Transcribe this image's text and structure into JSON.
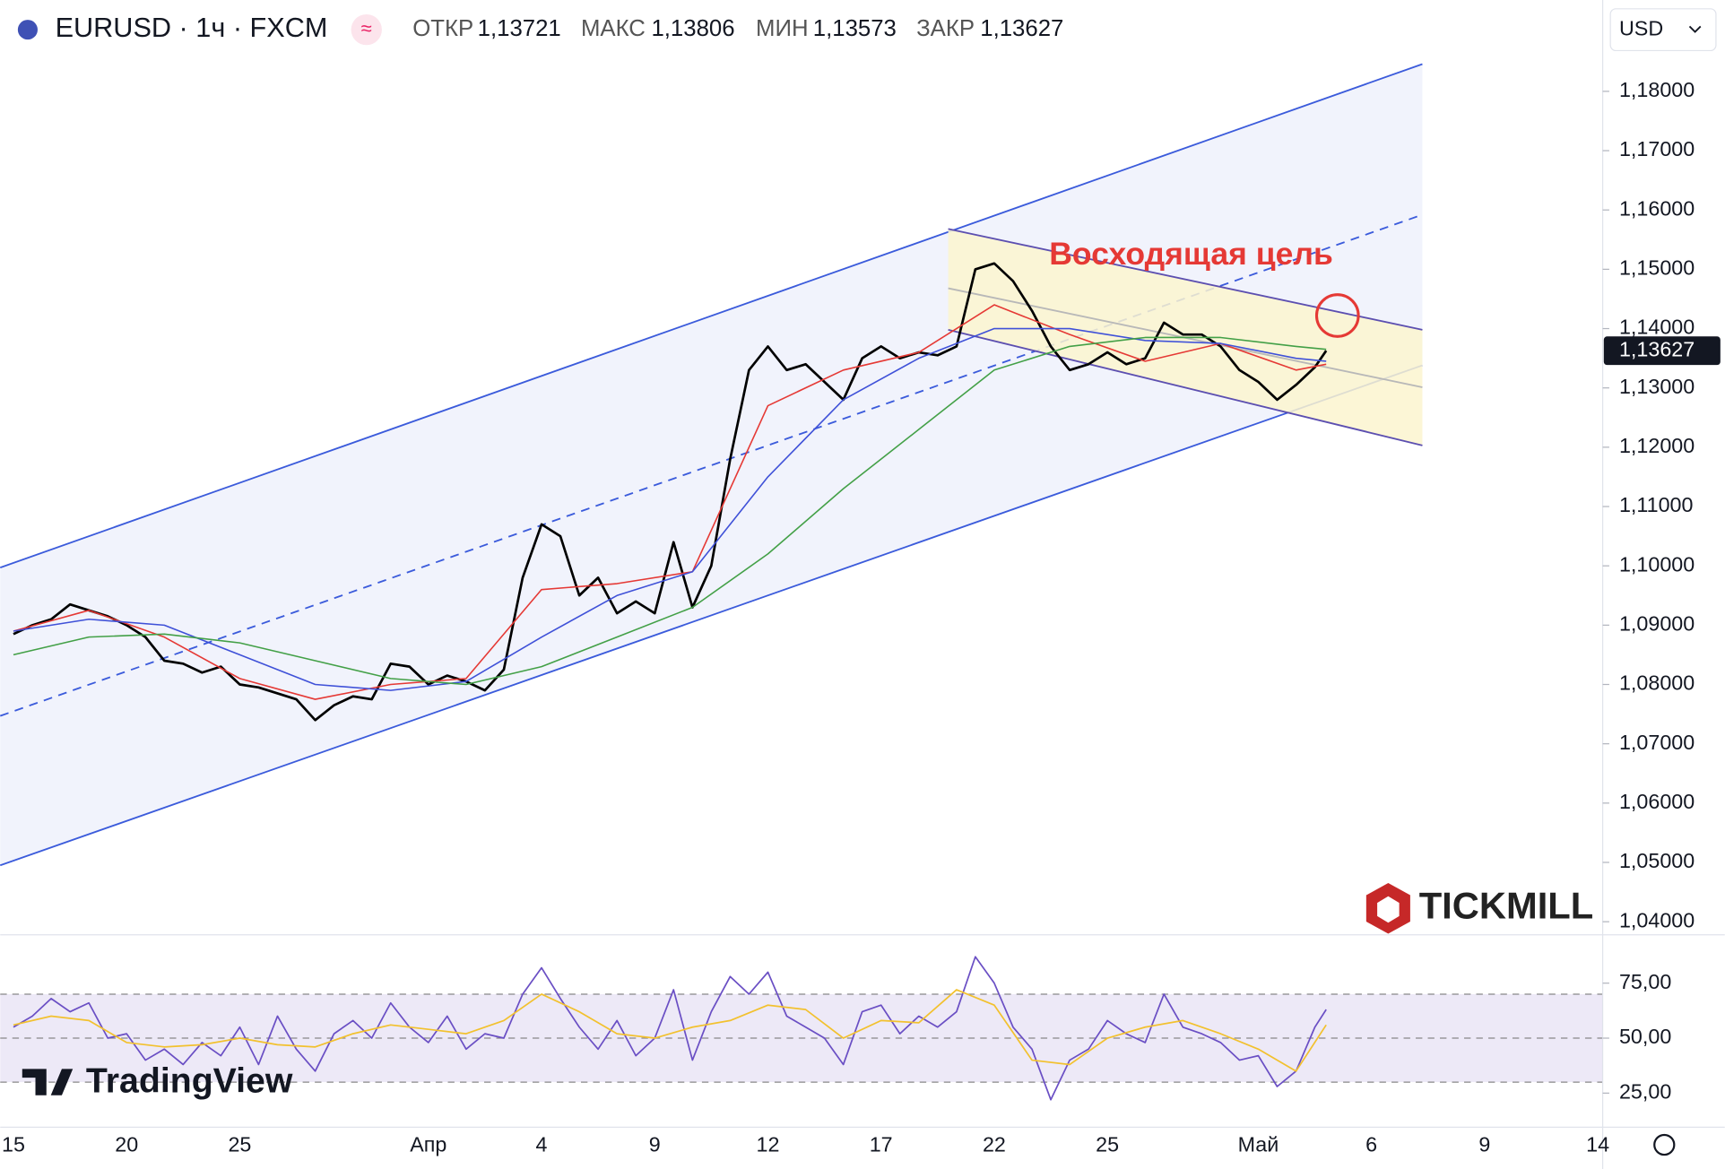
{
  "header": {
    "symbol": "EURUSD · 1ч · FXCM",
    "open_label": "ОТКР",
    "open": "1,13721",
    "high_label": "МАКС",
    "high": "1,13806",
    "low_label": "МИН",
    "low": "1,13573",
    "close_label": "ЗАКР",
    "close": "1,13627",
    "currency": "USD"
  },
  "logos": {
    "broker": "TICKMILL",
    "platform": "TradingView"
  },
  "chart_data": [
    {
      "type": "line",
      "annotation": "Восходящая цель",
      "target": {
        "x": 35.1,
        "value": 1.1422
      },
      "xlim": [
        -0.35,
        42.13
      ],
      "xticks": [
        {
          "value": 0,
          "label": "15"
        },
        {
          "value": 3,
          "label": "20"
        },
        {
          "value": 6,
          "label": "25"
        },
        {
          "value": 11,
          "label": "Апр"
        },
        {
          "value": 14,
          "label": "4"
        },
        {
          "value": 17,
          "label": "9"
        },
        {
          "value": 20,
          "label": "12"
        },
        {
          "value": 23,
          "label": "17"
        },
        {
          "value": 26,
          "label": "22"
        },
        {
          "value": 29,
          "label": "25"
        },
        {
          "value": 33,
          "label": "Май"
        },
        {
          "value": 36,
          "label": "6"
        },
        {
          "value": 39,
          "label": "9"
        },
        {
          "value": 42,
          "label": "14"
        }
      ],
      "ylim": [
        1.0378,
        1.1954
      ],
      "yticks": [
        {
          "value": 1.04,
          "label": "1,04000"
        },
        {
          "value": 1.05,
          "label": "1,05000"
        },
        {
          "value": 1.06,
          "label": "1,06000"
        },
        {
          "value": 1.07,
          "label": "1,07000"
        },
        {
          "value": 1.08,
          "label": "1,08000"
        },
        {
          "value": 1.09,
          "label": "1,09000"
        },
        {
          "value": 1.1,
          "label": "1,10000"
        },
        {
          "value": 1.11,
          "label": "1,11000"
        },
        {
          "value": 1.12,
          "label": "1,12000"
        },
        {
          "value": 1.13,
          "label": "1,13000"
        },
        {
          "value": 1.14,
          "label": "1,14000"
        },
        {
          "value": 1.15,
          "label": "1,15000"
        },
        {
          "value": 1.16,
          "label": "1,16000"
        },
        {
          "value": 1.17,
          "label": "1,17000"
        },
        {
          "value": 1.18,
          "label": "1,18000"
        }
      ],
      "grid": false,
      "series": [
        {
          "color": "#000000",
          "width": 2.2,
          "x": [
            0,
            0.5,
            1,
            1.5,
            2,
            2.5,
            3,
            3.5,
            4,
            4.5,
            5,
            5.5,
            6,
            6.5,
            7,
            7.5,
            8,
            8.5,
            9,
            9.5,
            10,
            10.5,
            11,
            11.5,
            12,
            12.5,
            13,
            13.5,
            14,
            14.5,
            15,
            15.5,
            16,
            16.5,
            17,
            17.5,
            18,
            18.5,
            19,
            19.5,
            20,
            20.5,
            21,
            21.5,
            22,
            22.5,
            23,
            23.5,
            24,
            24.5,
            25,
            25.5,
            26,
            26.5,
            27,
            27.5,
            28,
            28.5,
            29,
            29.5,
            30,
            30.5,
            31,
            31.5,
            32,
            32.5,
            33,
            33.5,
            34,
            34.5,
            34.8
          ],
          "values": [
            1.0885,
            1.09,
            1.091,
            1.0935,
            1.0925,
            1.0915,
            1.09,
            1.088,
            1.084,
            1.0835,
            1.082,
            1.083,
            1.08,
            1.0795,
            1.0785,
            1.0775,
            1.074,
            1.0765,
            1.078,
            1.0775,
            1.0835,
            1.083,
            1.08,
            1.0815,
            1.0805,
            1.079,
            1.0825,
            1.098,
            1.107,
            1.105,
            1.095,
            1.098,
            1.092,
            1.094,
            1.092,
            1.104,
            1.093,
            1.1,
            1.118,
            1.133,
            1.137,
            1.133,
            1.134,
            1.131,
            1.128,
            1.135,
            1.137,
            1.135,
            1.136,
            1.1355,
            1.137,
            1.15,
            1.151,
            1.148,
            1.143,
            1.137,
            1.133,
            1.134,
            1.136,
            1.134,
            1.135,
            1.141,
            1.139,
            1.139,
            1.137,
            1.133,
            1.131,
            1.128,
            1.1305,
            1.1335,
            1.13627
          ]
        },
        {
          "color": "#e53935",
          "width": 1.3,
          "x": [
            0,
            2,
            4,
            6,
            8,
            10,
            12,
            14,
            16,
            18,
            20,
            22,
            24,
            26,
            28,
            30,
            32,
            34,
            34.8
          ],
          "values": [
            1.089,
            1.0925,
            1.088,
            1.081,
            1.0775,
            1.08,
            1.081,
            1.096,
            1.097,
            1.099,
            1.127,
            1.133,
            1.136,
            1.144,
            1.139,
            1.1345,
            1.1375,
            1.133,
            1.134
          ]
        },
        {
          "color": "#3f51d8",
          "width": 1.3,
          "x": [
            0,
            2,
            4,
            6,
            8,
            10,
            12,
            14,
            16,
            18,
            20,
            22,
            24,
            26,
            28,
            30,
            32,
            34,
            34.8
          ],
          "values": [
            1.089,
            1.091,
            1.09,
            1.085,
            1.08,
            1.079,
            1.0805,
            1.088,
            1.095,
            1.099,
            1.115,
            1.128,
            1.135,
            1.14,
            1.14,
            1.138,
            1.1375,
            1.135,
            1.1345
          ]
        },
        {
          "color": "#43a047",
          "width": 1.3,
          "x": [
            0,
            2,
            4,
            6,
            8,
            10,
            12,
            14,
            16,
            18,
            20,
            22,
            24,
            26,
            28,
            30,
            32,
            34,
            34.8
          ],
          "values": [
            1.085,
            1.088,
            1.0885,
            1.087,
            1.084,
            1.081,
            1.08,
            1.083,
            1.088,
            1.093,
            1.102,
            1.113,
            1.123,
            1.133,
            1.137,
            1.1385,
            1.1385,
            1.137,
            1.1365
          ]
        }
      ],
      "channels": [
        {
          "color": "#3b5bdb",
          "fill": "#eef1fb",
          "upper": {
            "x": [
              -0.35,
              37.35
            ],
            "values": [
              1.0997,
              1.1846
            ]
          },
          "lower": {
            "x": [
              -0.35,
              37.35
            ],
            "values": [
              1.0495,
              1.1338
            ]
          },
          "middle": {
            "x": [
              -0.35,
              37.35
            ],
            "values": [
              1.0747,
              1.1592
            ]
          }
        },
        {
          "color": "#5c4fb0",
          "fill": "#fbf5cf",
          "upper": {
            "x": [
              24.78,
              37.35
            ],
            "values": [
              1.1568,
              1.1398
            ]
          },
          "lower": {
            "x": [
              24.78,
              37.35
            ],
            "values": [
              1.1398,
              1.1203
            ]
          },
          "middle": {
            "x": [
              24.78,
              37.35
            ],
            "values": [
              1.1468,
              1.1301
            ]
          }
        }
      ]
    },
    {
      "type": "line",
      "xlim": [
        -0.35,
        42.13
      ],
      "ylim": [
        9.5,
        97
      ],
      "yticks": [
        {
          "value": 25,
          "label": "25,00"
        },
        {
          "value": 50,
          "label": "50,00"
        },
        {
          "value": 75,
          "label": "75,00"
        }
      ],
      "bands": [
        30,
        70
      ],
      "midline": 50,
      "series": [
        {
          "color": "#6a4fc4",
          "width": 1.4,
          "x": [
            0,
            0.5,
            1,
            1.5,
            2,
            2.5,
            3,
            3.5,
            4,
            4.5,
            5,
            5.5,
            6,
            6.5,
            7,
            7.5,
            8,
            8.5,
            9,
            9.5,
            10,
            10.5,
            11,
            11.5,
            12,
            12.5,
            13,
            13.5,
            14,
            14.5,
            15,
            15.5,
            16,
            16.5,
            17,
            17.5,
            18,
            18.5,
            19,
            19.5,
            20,
            20.5,
            21,
            21.5,
            22,
            22.5,
            23,
            23.5,
            24,
            24.5,
            25,
            25.5,
            26,
            26.5,
            27,
            27.5,
            28,
            28.5,
            29,
            29.5,
            30,
            30.5,
            31,
            31.5,
            32,
            32.5,
            33,
            33.5,
            34,
            34.5,
            34.8
          ],
          "values": [
            55,
            60,
            68,
            62,
            66,
            50,
            52,
            40,
            45,
            38,
            48,
            42,
            55,
            38,
            60,
            45,
            35,
            52,
            58,
            50,
            66,
            55,
            48,
            60,
            45,
            52,
            50,
            70,
            82,
            68,
            55,
            45,
            58,
            42,
            50,
            72,
            40,
            62,
            78,
            70,
            80,
            60,
            55,
            50,
            38,
            62,
            65,
            52,
            60,
            55,
            62,
            87,
            75,
            55,
            45,
            22,
            40,
            45,
            58,
            52,
            48,
            70,
            55,
            52,
            48,
            40,
            42,
            28,
            35,
            55,
            63
          ]
        },
        {
          "color": "#f2c12e",
          "width": 1.4,
          "x": [
            0,
            1,
            2,
            3,
            4,
            5,
            6,
            7,
            8,
            9,
            10,
            11,
            12,
            13,
            14,
            15,
            16,
            17,
            18,
            19,
            20,
            21,
            22,
            23,
            24,
            25,
            26,
            27,
            28,
            29,
            30,
            31,
            32,
            33,
            34,
            34.8
          ],
          "values": [
            56,
            60,
            58,
            48,
            46,
            47,
            50,
            47,
            46,
            52,
            56,
            54,
            52,
            58,
            70,
            62,
            52,
            50,
            55,
            58,
            65,
            63,
            50,
            58,
            57,
            72,
            65,
            40,
            38,
            50,
            55,
            58,
            52,
            45,
            35,
            56
          ]
        }
      ]
    }
  ]
}
